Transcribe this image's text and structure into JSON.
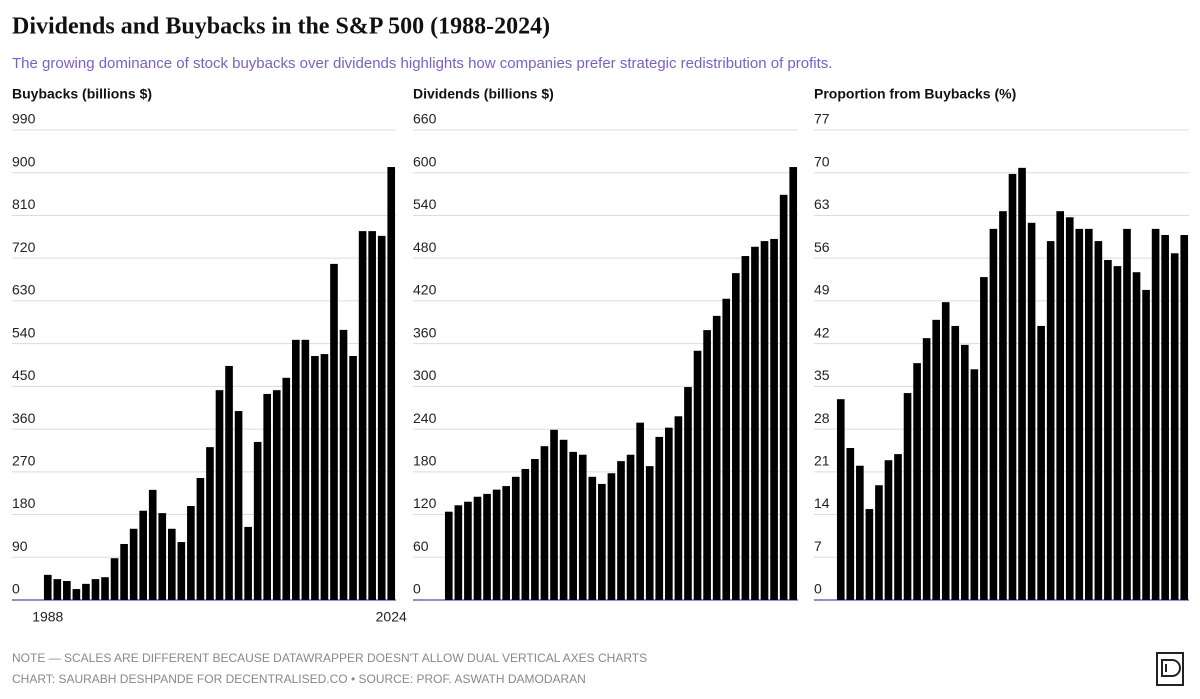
{
  "title": "Dividends and Buybacks in the S&P 500 (1988-2024)",
  "subtitle": "The growing dominance of stock buybacks over dividends highlights how companies prefer strategic redistribution of profits.",
  "note": "NOTE — SCALES ARE DIFFERENT BECAUSE DATAWRAPPER DOESN'T ALLOW DUAL VERTICAL AXES CHARTS",
  "credit": "CHART: SAURABH DESHPANDE FOR DECENTRALISED.CO • SOURCE: PROF. ASWATH DAMODARAN",
  "chart_data": [
    {
      "type": "bar",
      "y_label": "Buybacks (billions $)",
      "color": "#000000",
      "grid": true,
      "categories": [
        "1988",
        null,
        null,
        null,
        null,
        null,
        null,
        null,
        null,
        null,
        null,
        null,
        null,
        null,
        null,
        null,
        null,
        null,
        null,
        null,
        null,
        null,
        null,
        null,
        null,
        null,
        null,
        null,
        null,
        null,
        null,
        null,
        null,
        null,
        null,
        null,
        "2024"
      ],
      "values": [
        53,
        44,
        40,
        23,
        34,
        44,
        48,
        88,
        118,
        150,
        188,
        232,
        183,
        150,
        122,
        198,
        257,
        322,
        442,
        493,
        398,
        154,
        333,
        434,
        442,
        468,
        548,
        548,
        514,
        518,
        708,
        569,
        514,
        777,
        777,
        767,
        912
      ],
      "ylim": [
        0,
        990
      ],
      "yticks": [
        0,
        90,
        180,
        270,
        360,
        450,
        540,
        630,
        720,
        810,
        900,
        990
      ]
    },
    {
      "type": "bar",
      "y_label": "Dividends (billions $)",
      "color": "#000000",
      "grid": true,
      "values": [
        124,
        133,
        138,
        145,
        149,
        155,
        160,
        173,
        184,
        198,
        216,
        239,
        225,
        208,
        204,
        173,
        163,
        178,
        195,
        204,
        249,
        188,
        229,
        242,
        258,
        299,
        350,
        379,
        399,
        423,
        459,
        483,
        496,
        504,
        507,
        569,
        608
      ],
      "ylim": [
        0,
        660
      ],
      "yticks": [
        0,
        60,
        120,
        180,
        240,
        300,
        360,
        420,
        480,
        540,
        600,
        660
      ]
    },
    {
      "type": "bar",
      "y_label": "Proportion from Buybacks (%)",
      "color": "#000000",
      "grid": true,
      "values": [
        32.9,
        24.9,
        22,
        14.9,
        18.8,
        22.9,
        23.9,
        33.9,
        38.8,
        42.9,
        45.9,
        48.8,
        44.9,
        41.8,
        37.8,
        52.9,
        60.8,
        63.7,
        69.8,
        70.8,
        61.8,
        44.9,
        58.8,
        63.7,
        62.7,
        60.8,
        60.8,
        58.8,
        55.7,
        54.7,
        60.8,
        53.7,
        50.8,
        60.8,
        59.8,
        56.8,
        59.8
      ],
      "ylim": [
        0,
        77
      ],
      "yticks": [
        0,
        7,
        14,
        21,
        28,
        35,
        42,
        49,
        56,
        63,
        70,
        77
      ]
    }
  ]
}
